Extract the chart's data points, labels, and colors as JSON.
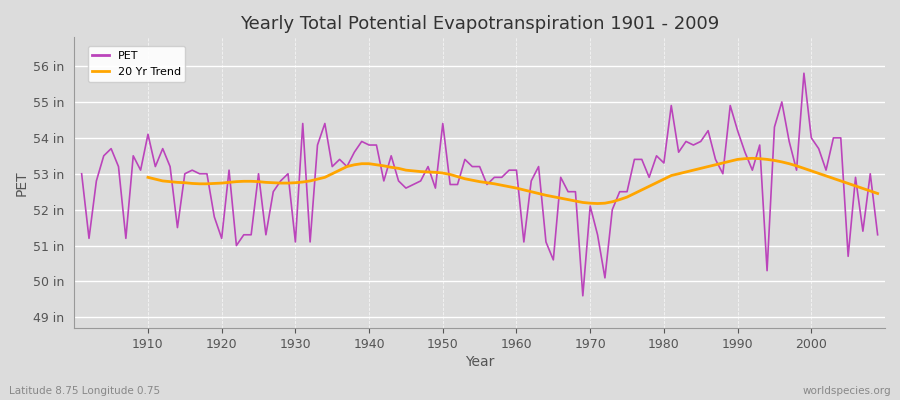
{
  "title": "Yearly Total Potential Evapotranspiration 1901 - 2009",
  "xlabel": "Year",
  "ylabel": "PET",
  "lat_lon_label": "Latitude 8.75 Longitude 0.75",
  "watermark": "worldspecies.org",
  "pet_color": "#BB44BB",
  "trend_color": "#FFA500",
  "fig_bg_color": "#DCDCDC",
  "plot_bg_color": "#DCDCDC",
  "ylim": [
    48.7,
    56.8
  ],
  "yticks": [
    49,
    50,
    51,
    52,
    53,
    54,
    55,
    56
  ],
  "ytick_labels": [
    "49 in",
    "50 in",
    "51 in",
    "52 in",
    "53 in",
    "54 in",
    "55 in",
    "56 in"
  ],
  "xlim": [
    1900,
    2010
  ],
  "xticks": [
    1910,
    1920,
    1930,
    1940,
    1950,
    1960,
    1970,
    1980,
    1990,
    2000
  ],
  "years": [
    1901,
    1902,
    1903,
    1904,
    1905,
    1906,
    1907,
    1908,
    1909,
    1910,
    1911,
    1912,
    1913,
    1914,
    1915,
    1916,
    1917,
    1918,
    1919,
    1920,
    1921,
    1922,
    1923,
    1924,
    1925,
    1926,
    1927,
    1928,
    1929,
    1930,
    1931,
    1932,
    1933,
    1934,
    1935,
    1936,
    1937,
    1938,
    1939,
    1940,
    1941,
    1942,
    1943,
    1944,
    1945,
    1946,
    1947,
    1948,
    1949,
    1950,
    1951,
    1952,
    1953,
    1954,
    1955,
    1956,
    1957,
    1958,
    1959,
    1960,
    1961,
    1962,
    1963,
    1964,
    1965,
    1966,
    1967,
    1968,
    1969,
    1970,
    1971,
    1972,
    1973,
    1974,
    1975,
    1976,
    1977,
    1978,
    1979,
    1980,
    1981,
    1982,
    1983,
    1984,
    1985,
    1986,
    1987,
    1988,
    1989,
    1990,
    1991,
    1992,
    1993,
    1994,
    1995,
    1996,
    1997,
    1998,
    1999,
    2000,
    2001,
    2002,
    2003,
    2004,
    2005,
    2006,
    2007,
    2008,
    2009
  ],
  "pet_values": [
    53.0,
    51.2,
    52.8,
    53.5,
    53.7,
    53.2,
    51.2,
    53.5,
    53.1,
    54.1,
    53.2,
    53.7,
    53.2,
    51.5,
    53.0,
    53.1,
    53.0,
    53.0,
    51.8,
    51.2,
    53.1,
    51.0,
    51.3,
    51.3,
    53.0,
    51.3,
    52.5,
    52.8,
    53.0,
    51.1,
    54.4,
    51.1,
    53.8,
    54.4,
    53.2,
    53.4,
    53.2,
    53.6,
    53.9,
    53.8,
    53.8,
    52.8,
    53.5,
    52.8,
    52.6,
    52.7,
    52.8,
    53.2,
    52.6,
    54.4,
    52.7,
    52.7,
    53.4,
    53.2,
    53.2,
    52.7,
    52.9,
    52.9,
    53.1,
    53.1,
    51.1,
    52.8,
    53.2,
    51.1,
    50.6,
    52.9,
    52.5,
    52.5,
    49.6,
    52.1,
    51.3,
    50.1,
    52.0,
    52.5,
    52.5,
    53.4,
    53.4,
    52.9,
    53.5,
    53.3,
    54.9,
    53.6,
    53.9,
    53.8,
    53.9,
    54.2,
    53.4,
    53.0,
    54.9,
    54.2,
    53.6,
    53.1,
    53.8,
    50.3,
    54.3,
    55.0,
    53.9,
    53.1,
    55.8,
    54.0,
    53.7,
    53.1,
    54.0,
    54.0,
    50.7,
    52.9,
    51.4,
    53.0,
    51.3
  ],
  "trend_years": [
    1910,
    1911,
    1912,
    1913,
    1914,
    1915,
    1916,
    1917,
    1918,
    1919,
    1920,
    1921,
    1922,
    1923,
    1924,
    1925,
    1926,
    1927,
    1928,
    1929,
    1930,
    1931,
    1932,
    1933,
    1934,
    1935,
    1936,
    1937,
    1938,
    1939,
    1940,
    1941,
    1942,
    1943,
    1944,
    1945,
    1946,
    1947,
    1948,
    1949,
    1950,
    1951,
    1952,
    1953,
    1954,
    1955,
    1956,
    1957,
    1958,
    1959,
    1960,
    1961,
    1962,
    1963,
    1964,
    1965,
    1966,
    1967,
    1968,
    1969,
    1970,
    1971,
    1972,
    1973,
    1974,
    1975,
    1976,
    1977,
    1978,
    1979,
    1980,
    1981,
    1982,
    1983,
    1984,
    1985,
    1986,
    1987,
    1988,
    1989,
    1990,
    1991,
    1992,
    1993,
    1994,
    1995,
    1996,
    1997,
    1998,
    1999,
    2000,
    2001,
    2002,
    2003,
    2004,
    2005,
    2006,
    2007,
    2008,
    2009
  ],
  "trend_values": [
    52.9,
    52.85,
    52.8,
    52.78,
    52.76,
    52.75,
    52.73,
    52.72,
    52.72,
    52.73,
    52.74,
    52.76,
    52.78,
    52.79,
    52.79,
    52.78,
    52.76,
    52.75,
    52.74,
    52.74,
    52.75,
    52.77,
    52.8,
    52.85,
    52.9,
    53.0,
    53.1,
    53.2,
    53.25,
    53.28,
    53.28,
    53.25,
    53.22,
    53.18,
    53.15,
    53.1,
    53.08,
    53.06,
    53.05,
    53.04,
    53.02,
    52.98,
    52.92,
    52.86,
    52.82,
    52.78,
    52.75,
    52.72,
    52.68,
    52.64,
    52.6,
    52.55,
    52.5,
    52.45,
    52.4,
    52.36,
    52.32,
    52.28,
    52.24,
    52.2,
    52.18,
    52.17,
    52.18,
    52.22,
    52.28,
    52.35,
    52.45,
    52.55,
    52.65,
    52.75,
    52.85,
    52.95,
    53.0,
    53.05,
    53.1,
    53.15,
    53.2,
    53.25,
    53.3,
    53.35,
    53.4,
    53.42,
    53.43,
    53.42,
    53.4,
    53.37,
    53.33,
    53.28,
    53.22,
    53.15,
    53.08,
    53.01,
    52.94,
    52.87,
    52.8,
    52.73,
    52.66,
    52.59,
    52.52,
    52.45
  ]
}
